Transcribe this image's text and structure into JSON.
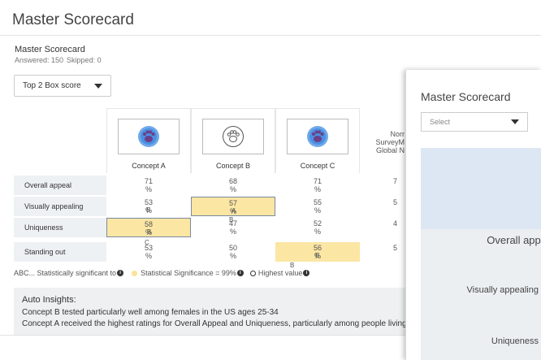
{
  "page_title": "Master Scorecard",
  "scorecard": {
    "title": "Master Scorecard",
    "answered": "Answered: 150",
    "skipped": "Skipped: 0",
    "dropdown_value": "Top 2 Box score"
  },
  "columns": [
    {
      "label": "Concept A",
      "icon": "paw-icon-filled"
    },
    {
      "label": "Concept B",
      "icon": "paw-icon-outline"
    },
    {
      "label": "Concept C",
      "icon": "paw-icon-filled"
    }
  ],
  "norm_header": {
    "line1": "Norr",
    "line2": "SurveyM",
    "line3": "Global N"
  },
  "rows": [
    {
      "label": "Overall appeal",
      "cells": [
        {
          "value": "71",
          "unit": "%"
        },
        {
          "value": "68",
          "unit": "%"
        },
        {
          "value": "71",
          "unit": "%"
        }
      ],
      "norm": "7"
    },
    {
      "label": "Visually appealing",
      "cells": [
        {
          "value": "53",
          "unit": "%",
          "sig_overlap": "B"
        },
        {
          "value": "57",
          "unit": "%",
          "sig_overlap": "A"
        },
        {
          "value": "55",
          "unit": "%"
        }
      ],
      "norm": "5"
    },
    {
      "label": "Uniqueness",
      "cells": [
        {
          "value": "58",
          "unit": "%",
          "sig_overlap": "B"
        },
        {
          "value": "47",
          "unit": "%"
        },
        {
          "value": "52",
          "unit": "%"
        }
      ],
      "norm": "4"
    },
    {
      "label": "Standing out",
      "cells": [
        {
          "value": "53",
          "unit": "%"
        },
        {
          "value": "50",
          "unit": "%"
        },
        {
          "value": "56",
          "unit": "%",
          "sig_overlap": "B"
        }
      ],
      "norm": "5"
    }
  ],
  "sig_letters": {
    "b_above_row3": "B",
    "c_above_row4": "C",
    "b_below_row4": "B"
  },
  "legend": {
    "sig_text": "ABC... Statistically significant to",
    "significance_text": "Statistical Significance = 99%",
    "highest_text": "Highest value"
  },
  "insights": {
    "heading": "Auto Insights:",
    "line1": "Concept B tested particularly well among females in the US ages 25-34",
    "line2": "Concept A received the highest ratings for Overall Appeal and Uniqueness, particularly among people living i"
  },
  "panel": {
    "title": "Master Scorecard",
    "select_placeholder": "Select",
    "rows": [
      "Overall appe",
      "Visually appealing",
      "Uniqueness"
    ]
  },
  "colors": {
    "highlight": "#fbe6a4",
    "row_label_bg": "#eef1f4",
    "icon_purple": "#6c3f86",
    "icon_blue": "#4a90e2"
  }
}
